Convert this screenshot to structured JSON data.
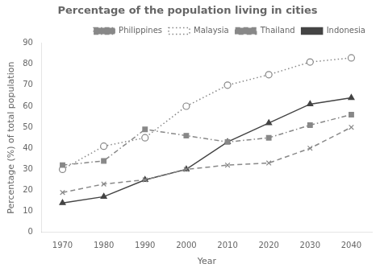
{
  "chart_data": {
    "type": "line",
    "title": "Percentage of the population living in cities",
    "x_label": "Year",
    "y_label": "Percentage (%) of total population",
    "x": [
      1970,
      1980,
      1990,
      2000,
      2010,
      2020,
      2030,
      2040
    ],
    "series": [
      {
        "name": "Philippines",
        "color": "#888888",
        "line_style": "dashdot",
        "marker": "square",
        "values": [
          32,
          34,
          49,
          46,
          43,
          45,
          51,
          56
        ]
      },
      {
        "name": "Malaysia",
        "color": "#888888",
        "line_style": "dotted",
        "marker": "circle-open",
        "values": [
          30,
          41,
          45,
          60,
          70,
          75,
          81,
          83
        ]
      },
      {
        "name": "Thailand",
        "color": "#888888",
        "line_style": "dashed",
        "marker": "x",
        "values": [
          19,
          23,
          25,
          30,
          32,
          33,
          40,
          50
        ]
      },
      {
        "name": "Indonesia",
        "color": "#444444",
        "line_style": "solid",
        "marker": "triangle",
        "values": [
          14,
          17,
          25,
          30,
          43,
          52,
          61,
          64
        ]
      }
    ],
    "xlim": [
      1965,
      2045
    ],
    "xticks": [
      1970,
      1980,
      1990,
      2000,
      2010,
      2020,
      2030,
      2040
    ],
    "ylim": [
      0,
      90
    ],
    "yticks": [
      0,
      10,
      20,
      30,
      40,
      50,
      60,
      70,
      80,
      90
    ],
    "grid": false,
    "legend": "upper right"
  }
}
